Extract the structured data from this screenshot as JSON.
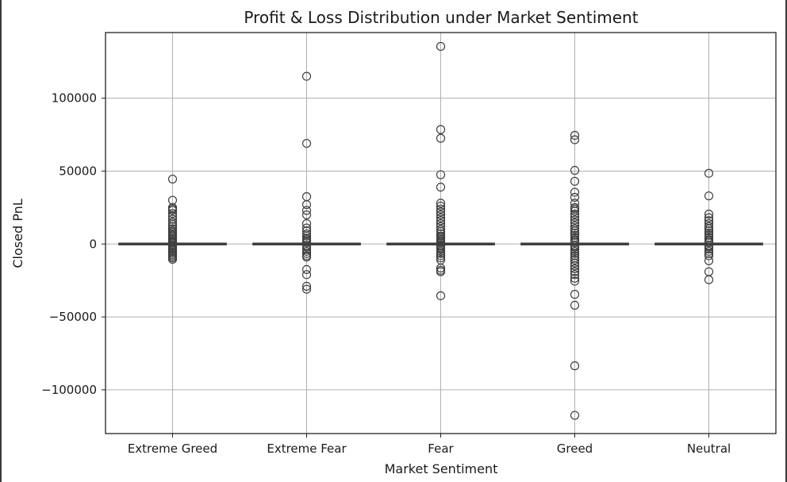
{
  "chart_data": {
    "type": "box",
    "title": "Profit & Loss Distribution under Market Sentiment",
    "xlabel": "Market Sentiment",
    "ylabel": "Closed PnL",
    "categories": [
      "Extreme Greed",
      "Extreme Fear",
      "Fear",
      "Greed",
      "Neutral"
    ],
    "ylim": [
      -130000,
      145000
    ],
    "yticks": [
      -100000,
      -50000,
      0,
      50000,
      100000
    ],
    "ytick_labels": [
      "−100000",
      "−50000",
      "0",
      "50000",
      "100000"
    ],
    "grid": true,
    "box_color": "#1f77b4",
    "boxes": [
      {
        "category": "Extreme Greed",
        "q1": 0,
        "median": 0,
        "q3": 0,
        "whisker_low": 0,
        "whisker_high": 0,
        "outliers": [
          44500,
          30000,
          25000,
          24000,
          23000,
          21000,
          19000,
          17000,
          15000,
          13500,
          12000,
          10500,
          9000,
          8000,
          7000,
          6000,
          5000,
          4000,
          3000,
          2000,
          1200,
          600,
          -600,
          -1500,
          -2500,
          -3500,
          -4500,
          -5500,
          -6500,
          -7500,
          -8500,
          -9500,
          -10500
        ]
      },
      {
        "category": "Extreme Fear",
        "q1": 0,
        "median": 0,
        "q3": 0,
        "whisker_low": 0,
        "whisker_high": 0,
        "outliers": [
          115000,
          69000,
          32500,
          27000,
          23000,
          20000,
          14000,
          11000,
          9000,
          7000,
          5500,
          4000,
          3000,
          2000,
          1000,
          -1000,
          -2000,
          -3500,
          -5000,
          -6500,
          -8000,
          -9000,
          -17500,
          -21000,
          -29000,
          -31000
        ]
      },
      {
        "category": "Fear",
        "q1": 0,
        "median": 0,
        "q3": 0,
        "whisker_low": 0,
        "whisker_high": 0,
        "outliers": [
          135500,
          78500,
          72500,
          47500,
          39000,
          28000,
          26000,
          24000,
          22000,
          20000,
          18000,
          16000,
          14000,
          12000,
          10000,
          8500,
          7000,
          5500,
          4500,
          3500,
          2500,
          1500,
          700,
          -700,
          -1500,
          -2500,
          -3500,
          -5000,
          -6500,
          -8000,
          -9500,
          -11000,
          -16500,
          -18000,
          -19000,
          -35500
        ]
      },
      {
        "category": "Greed",
        "q1": 0,
        "median": 0,
        "q3": 0,
        "whisker_low": 0,
        "whisker_high": 0,
        "outliers": [
          74500,
          71500,
          50500,
          43000,
          35500,
          32000,
          28000,
          25000,
          24000,
          22500,
          20500,
          18500,
          16500,
          14500,
          12500,
          10500,
          9000,
          7500,
          6000,
          4500,
          3000,
          2000,
          1000,
          -1000,
          -2000,
          -3500,
          -5000,
          -6500,
          -8000,
          -9500,
          -11000,
          -13000,
          -15000,
          -17000,
          -19000,
          -21000,
          -23500,
          -25500,
          -34500,
          -42000,
          -83500,
          -117500
        ]
      },
      {
        "category": "Neutral",
        "q1": 0,
        "median": 0,
        "q3": 0,
        "whisker_low": 0,
        "whisker_high": 0,
        "outliers": [
          48500,
          33000,
          20500,
          18000,
          16000,
          14000,
          12000,
          10500,
          9000,
          7500,
          6000,
          4500,
          3000,
          2000,
          1000,
          -1000,
          -2000,
          -3500,
          -5000,
          -6500,
          -8000,
          -11500,
          -19000,
          -24500
        ]
      }
    ]
  }
}
